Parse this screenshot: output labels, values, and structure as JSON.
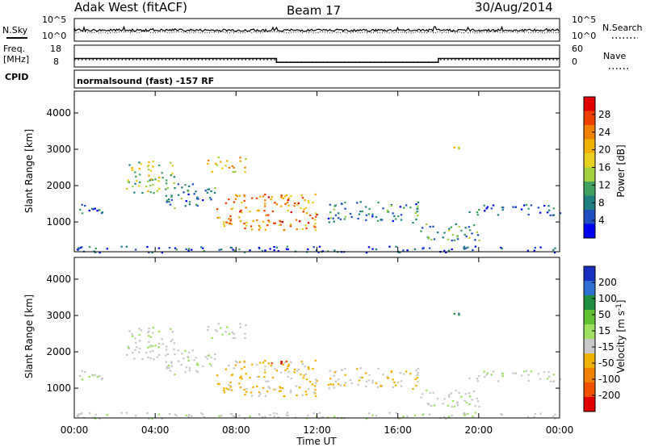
{
  "header": {
    "station": "Adak West (fitACF)",
    "beam": "Beam 17",
    "date": "30/Aug/2014"
  },
  "params": {
    "nsky_label": "N.Sky",
    "nsearch_label": "N.Search",
    "nsky_ticks": [
      "10^5",
      "10^0"
    ],
    "nsearch_ticks": [
      "10^5",
      "10^0"
    ],
    "freq_label_1": "Freq.",
    "freq_label_2": "[MHz]",
    "freq_ticks": [
      "18",
      "8"
    ],
    "nave_label": "Nave",
    "nave_ticks": [
      "60",
      "0"
    ],
    "cpid_label": "CPID",
    "cpid_text": "normalsound (fast) -157 RF"
  },
  "axes": {
    "ylabel": "Slant Range [km]",
    "xlabel": "Time UT",
    "y_ticks": [
      "4000",
      "3000",
      "2000",
      "1000"
    ],
    "x_ticks": [
      "00:00",
      "04:00",
      "08:00",
      "12:00",
      "16:00",
      "20:00",
      "00:00"
    ]
  },
  "colorbars": {
    "power": {
      "label": "Power [dB]",
      "ticks": [
        "28",
        "24",
        "20",
        "16",
        "12",
        "8",
        "4"
      ],
      "colors": [
        "#e00000",
        "#f04000",
        "#f08000",
        "#f0b000",
        "#e8d020",
        "#a0d040",
        "#40a060",
        "#208080",
        "#2050c0",
        "#0000f0"
      ]
    },
    "velocity": {
      "label_main": "Velocity [m s",
      "label_sup": "-1",
      "label_end": "]",
      "ticks": [
        "200",
        "100",
        "50",
        "15",
        "-15",
        "-50",
        "-100",
        "-200"
      ],
      "colors": [
        "#1830c0",
        "#3070d0",
        "#209040",
        "#60c030",
        "#a0e060",
        "#c8c8c8",
        "#f0b000",
        "#f08000",
        "#f05000",
        "#e00000"
      ]
    }
  },
  "chart_data": {
    "type": "heatmap",
    "title": "Adak West (fitACF) Beam 17 30/Aug/2014",
    "xlabel": "Time UT",
    "ylabel": "Slant Range [km]",
    "x_range_hours": [
      0,
      24
    ],
    "y_range_km": [
      180,
      4600
    ],
    "power_scale_db": [
      0,
      30
    ],
    "velocity_scale_ms": [
      -250,
      250
    ],
    "frequency_mhz_trace": [
      {
        "t_start": 0,
        "t_end": 10,
        "freq_mhz": 12.5
      },
      {
        "t_start": 10,
        "t_end": 18,
        "freq_mhz": 10.0
      },
      {
        "t_start": 18,
        "t_end": 24,
        "freq_mhz": 12.5
      }
    ],
    "echo_regions": [
      {
        "name": "band-early",
        "t_start": 0.0,
        "t_end": 2.0,
        "r_min": 1250,
        "r_max": 1500,
        "power_db": 6,
        "velocity_ms": 0
      },
      {
        "name": "arc-morning",
        "t_start": 2.5,
        "t_end": 5.0,
        "r_min": 1800,
        "r_max": 2700,
        "power_db": 14,
        "velocity_ms": 0
      },
      {
        "name": "arc-midmorning",
        "t_start": 4.5,
        "t_end": 7.0,
        "r_min": 1400,
        "r_max": 2100,
        "power_db": 8,
        "velocity_ms": 0
      },
      {
        "name": "patch-0630",
        "t_start": 6.5,
        "t_end": 8.5,
        "r_min": 2400,
        "r_max": 2800,
        "power_db": 18,
        "velocity_ms": 0
      },
      {
        "name": "main-patch",
        "t_start": 7.0,
        "t_end": 12.0,
        "r_min": 800,
        "r_max": 1800,
        "power_db": 22,
        "velocity_ms": -60
      },
      {
        "name": "strong-flow",
        "t_start": 9.0,
        "t_end": 10.5,
        "r_min": 1700,
        "r_max": 1800,
        "power_db": 20,
        "velocity_ms": -200
      },
      {
        "name": "band-midday",
        "t_start": 12.5,
        "t_end": 17.0,
        "r_min": 1000,
        "r_max": 1600,
        "power_db": 8,
        "velocity_ms": -40
      },
      {
        "name": "low-range-evening",
        "t_start": 17.0,
        "t_end": 20.0,
        "r_min": 500,
        "r_max": 1000,
        "power_db": 10,
        "velocity_ms": 0
      },
      {
        "name": "late-band",
        "t_start": 19.5,
        "t_end": 24.0,
        "r_min": 1200,
        "r_max": 1500,
        "power_db": 6,
        "velocity_ms": 0
      },
      {
        "name": "patch-1800",
        "t_start": 18.5,
        "t_end": 19.0,
        "r_min": 2900,
        "r_max": 3100,
        "power_db": 16,
        "velocity_ms": 150
      },
      {
        "name": "ground-scatter-floor",
        "t_start": 0.0,
        "t_end": 24.0,
        "r_min": 180,
        "r_max": 350,
        "power_db": 4,
        "velocity_ms": 0
      }
    ]
  }
}
